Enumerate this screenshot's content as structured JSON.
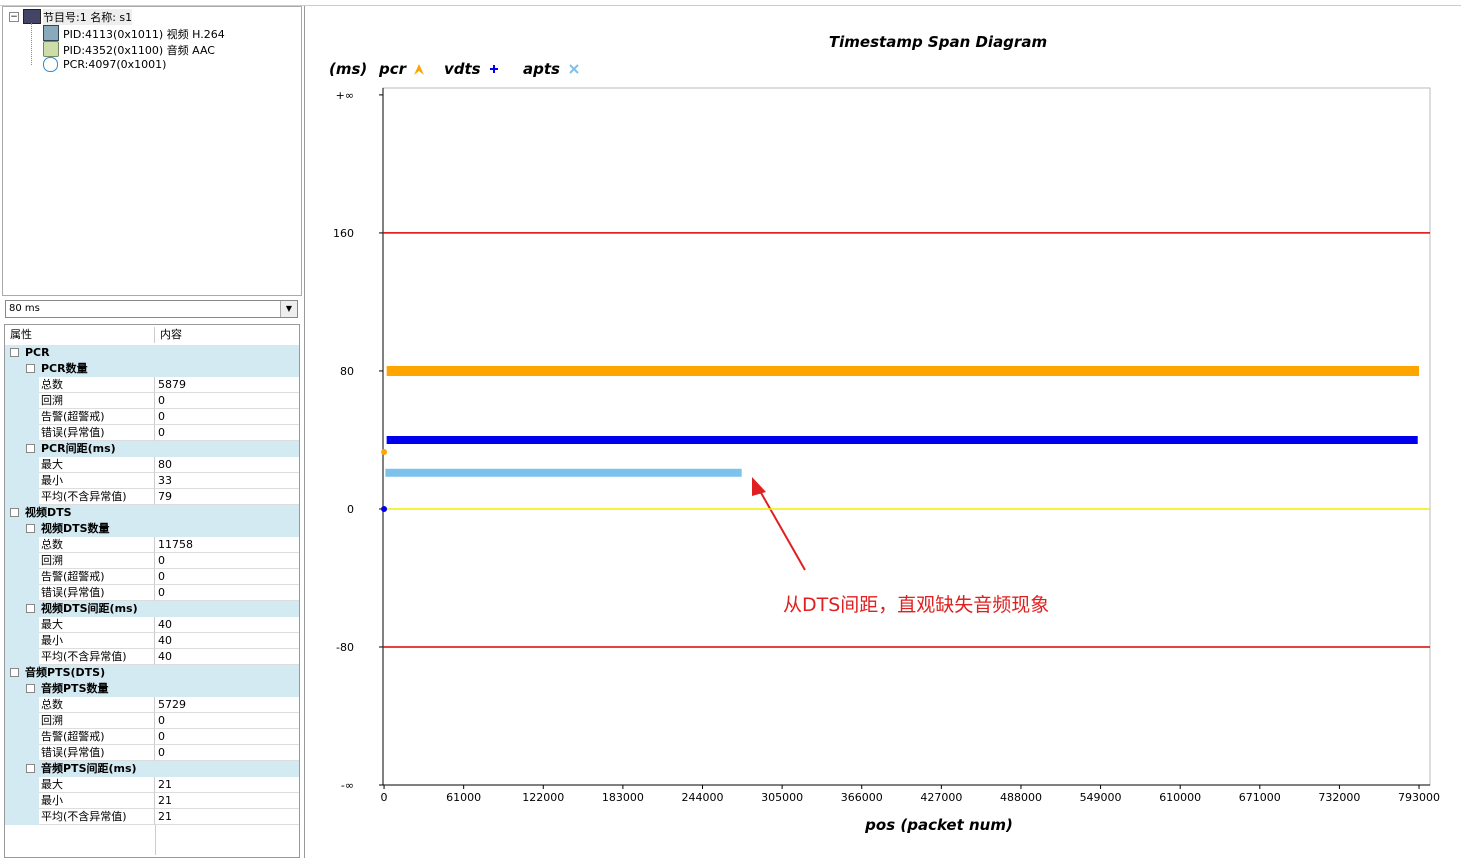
{
  "tree": {
    "root": "节目号:1 名称: s1",
    "children": [
      "PID:4113(0x1011) 视频 H.264",
      "PID:4352(0x1100) 音频 AAC",
      "PCR:4097(0x1001)"
    ]
  },
  "dropdown": "80 ms",
  "grid": {
    "headers": [
      "属性",
      "内容"
    ],
    "sections": [
      {
        "name": "PCR",
        "groups": [
          {
            "name": "PCR数量",
            "rows": [
              [
                "总数",
                5879
              ],
              [
                "回溯",
                0
              ],
              [
                "告警(超警戒)",
                0
              ],
              [
                "错误(异常值)",
                0
              ]
            ]
          },
          {
            "name": "PCR间距(ms)",
            "rows": [
              [
                "最大",
                80
              ],
              [
                "最小",
                33
              ],
              [
                "平均(不含异常值)",
                79
              ]
            ]
          }
        ]
      },
      {
        "name": "视频DTS",
        "groups": [
          {
            "name": "视频DTS数量",
            "rows": [
              [
                "总数",
                11758
              ],
              [
                "回溯",
                0
              ],
              [
                "告警(超警戒)",
                0
              ],
              [
                "错误(异常值)",
                0
              ]
            ]
          },
          {
            "name": "视频DTS间距(ms)",
            "rows": [
              [
                "最大",
                40
              ],
              [
                "最小",
                40
              ],
              [
                "平均(不含异常值)",
                40
              ]
            ]
          }
        ]
      },
      {
        "name": "音频PTS(DTS)",
        "groups": [
          {
            "name": "音频PTS数量",
            "rows": [
              [
                "总数",
                5729
              ],
              [
                "回溯",
                0
              ],
              [
                "告警(超警戒)",
                0
              ],
              [
                "错误(异常值)",
                0
              ]
            ]
          },
          {
            "name": "音频PTS间距(ms)",
            "rows": [
              [
                "最大",
                21
              ],
              [
                "最小",
                21
              ],
              [
                "平均(不含异常值)",
                21
              ]
            ]
          }
        ]
      }
    ]
  },
  "chart_data": {
    "type": "line",
    "title": "Timestamp Span Diagram",
    "y_label": "(ms)",
    "x_label": "pos (packet num)",
    "xlim": [
      -800,
      801400
    ],
    "ylim": [
      -160,
      244
    ],
    "xticks": [
      0,
      61000,
      122000,
      183000,
      244000,
      305000,
      366000,
      427000,
      488000,
      549000,
      610000,
      671000,
      732000,
      793000
    ],
    "yticks": [
      {
        "value": 240,
        "label": "+∞"
      },
      160,
      80,
      0,
      -80,
      {
        "value": -160,
        "label": "-∞"
      }
    ],
    "reference_lines": [
      {
        "value": 160,
        "color": "#e00000"
      },
      {
        "value": 0,
        "color": "#f0f000"
      },
      {
        "value": -80,
        "color": "#e00000"
      }
    ],
    "series": [
      {
        "name": "pcr",
        "color": "#ffa500",
        "x": [
          0,
          1000,
          2000,
          793000
        ],
        "values": [
          33,
          null,
          80,
          80
        ]
      },
      {
        "name": "vdts",
        "color": "#0000ee",
        "x": [
          0,
          1000,
          2000,
          792000
        ],
        "values": [
          0,
          null,
          40,
          40
        ]
      },
      {
        "name": "apts",
        "color": "#7dc2ec",
        "x": [
          1000,
          274000
        ],
        "values": [
          21,
          21
        ]
      }
    ],
    "annotation": "从DTS间距，直观缺失音频现象"
  }
}
